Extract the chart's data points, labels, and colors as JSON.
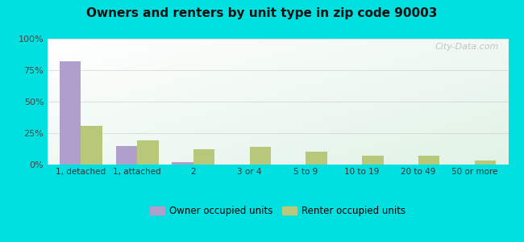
{
  "title": "Owners and renters by unit type in zip code 90003",
  "categories": [
    "1, detached",
    "1, attached",
    "2",
    "3 or 4",
    "5 to 9",
    "10 to 19",
    "20 to 49",
    "50 or more"
  ],
  "owner_values": [
    82,
    15,
    2,
    0,
    0,
    0,
    0,
    0
  ],
  "renter_values": [
    31,
    19,
    12,
    14,
    10,
    7,
    7,
    3
  ],
  "owner_color": "#b09fcc",
  "renter_color": "#b8c87a",
  "background_outer": "#00e0e0",
  "ylim": [
    0,
    100
  ],
  "yticks": [
    0,
    25,
    50,
    75,
    100
  ],
  "ytick_labels": [
    "0%",
    "25%",
    "50%",
    "75%",
    "100%"
  ],
  "legend_owner": "Owner occupied units",
  "legend_renter": "Renter occupied units",
  "watermark": "City-Data.com",
  "bar_width": 0.38
}
